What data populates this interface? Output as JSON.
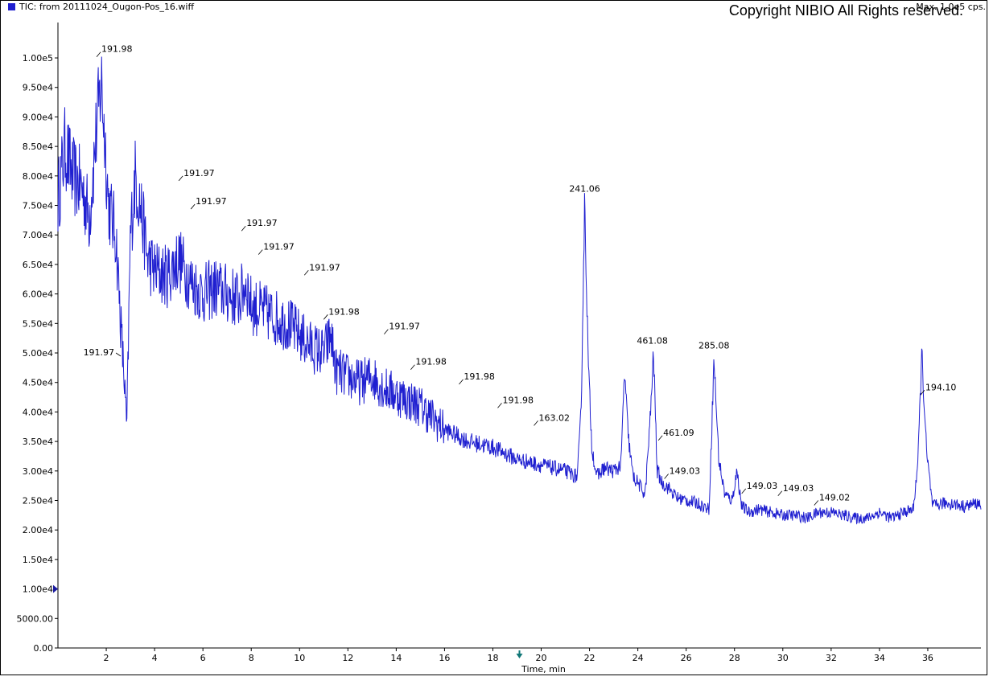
{
  "legend": {
    "label": "TIC: from 20111024_Ougon-Pos_16.wiff",
    "color": "#1f1fd0"
  },
  "max_label": "Max. 1.0e5 cps.",
  "copyright": "Copyright NIBIO All Rights reserved.",
  "chart_data": {
    "type": "line",
    "xlabel": "Time, min",
    "ylabel": "",
    "xlim": [
      0,
      38.2
    ],
    "ylim": [
      0,
      106000
    ],
    "x_ticks": [
      2,
      4,
      6,
      8,
      10,
      12,
      14,
      16,
      18,
      20,
      22,
      24,
      26,
      28,
      30,
      32,
      34,
      36
    ],
    "x_tick_labels": [
      "2",
      "4",
      "6",
      "8",
      "10",
      "12",
      "14",
      "16",
      "18",
      "20",
      "22",
      "24",
      "26",
      "28",
      "30",
      "32",
      "34",
      "36"
    ],
    "y_ticks": [
      0,
      5000,
      10000,
      15000,
      20000,
      25000,
      30000,
      35000,
      40000,
      45000,
      50000,
      55000,
      60000,
      65000,
      70000,
      75000,
      80000,
      85000,
      90000,
      95000,
      100000
    ],
    "y_tick_labels": [
      "0.00",
      "5000.00",
      "1.00e4",
      "1.50e4",
      "2.00e4",
      "2.50e4",
      "3.00e4",
      "3.50e4",
      "4.00e4",
      "4.50e4",
      "5.00e4",
      "5.50e4",
      "6.00e4",
      "6.50e4",
      "7.00e4",
      "7.50e4",
      "8.00e4",
      "8.50e4",
      "9.00e4",
      "9.50e4",
      "1.00e5"
    ],
    "series": [
      {
        "color": "#1f1fd0",
        "x": [
          0.0,
          0.3,
          0.6,
          1.0,
          1.3,
          1.6,
          1.8,
          2.1,
          2.4,
          2.6,
          2.75,
          2.85,
          3.0,
          3.2,
          3.45,
          3.7,
          4.0,
          4.5,
          5.0,
          5.5,
          6.0,
          6.5,
          7.0,
          7.5,
          7.8,
          8.0,
          8.5,
          9.0,
          9.5,
          10.0,
          10.5,
          11.0,
          11.3,
          11.5,
          12.0,
          12.5,
          13.0,
          13.5,
          14.0,
          14.5,
          15.0,
          15.5,
          16.0,
          16.5,
          17.0,
          17.5,
          18.0,
          18.5,
          19.0,
          19.5,
          20.0,
          20.5,
          21.0,
          21.5,
          21.65,
          21.8,
          21.95,
          22.1,
          22.3,
          22.6,
          23.0,
          23.3,
          23.45,
          23.6,
          23.8,
          24.0,
          24.3,
          24.5,
          24.65,
          24.8,
          25.0,
          25.3,
          25.6,
          26.0,
          26.5,
          26.95,
          27.15,
          27.35,
          27.6,
          27.9,
          28.1,
          28.3,
          28.6,
          29.0,
          29.5,
          30.0,
          30.5,
          31.0,
          31.5,
          32.0,
          32.5,
          33.0,
          33.5,
          34.0,
          34.5,
          35.0,
          35.4,
          35.6,
          35.75,
          35.95,
          36.2,
          36.6,
          37.0,
          37.5,
          38.0,
          38.2
        ],
        "values": [
          76000,
          85000,
          80000,
          78000,
          73000,
          88000,
          96000,
          75000,
          70000,
          55000,
          45000,
          37000,
          70000,
          80000,
          74000,
          66000,
          64000,
          63000,
          66000,
          62000,
          60000,
          61000,
          60000,
          59000,
          62000,
          58000,
          57000,
          56000,
          55000,
          53000,
          51000,
          50000,
          53000,
          47000,
          46000,
          45000,
          46000,
          44000,
          43000,
          42000,
          41000,
          39000,
          37000,
          36000,
          35000,
          34500,
          34000,
          33000,
          32000,
          31500,
          31000,
          30500,
          30000,
          29000,
          40000,
          76000,
          48000,
          34000,
          29000,
          30500,
          30000,
          31000,
          47000,
          36000,
          29000,
          28000,
          26000,
          38000,
          50000,
          30000,
          28000,
          27000,
          25500,
          25000,
          24500,
          23500,
          49000,
          32000,
          26000,
          25000,
          30000,
          24000,
          23000,
          23500,
          23000,
          22500,
          22500,
          22000,
          23000,
          23000,
          22500,
          22000,
          22000,
          23000,
          22000,
          23000,
          23500,
          32000,
          50000,
          33000,
          24000,
          24500,
          24500,
          24000,
          24500,
          24500
        ],
        "noise": 0.08
      }
    ],
    "annotations": [
      {
        "x": 1.6,
        "y": 101000,
        "label": "191.98"
      },
      {
        "x": 2.6,
        "y": 50000,
        "label": "191.97",
        "side": "left"
      },
      {
        "x": 5.0,
        "y": 80000,
        "label": "191.97"
      },
      {
        "x": 5.5,
        "y": 75200,
        "label": "191.97"
      },
      {
        "x": 7.6,
        "y": 71500,
        "label": "191.97"
      },
      {
        "x": 8.3,
        "y": 67500,
        "label": "191.97"
      },
      {
        "x": 10.2,
        "y": 64000,
        "label": "191.97"
      },
      {
        "x": 11.0,
        "y": 56500,
        "label": "191.98"
      },
      {
        "x": 13.5,
        "y": 54000,
        "label": "191.97"
      },
      {
        "x": 14.6,
        "y": 48000,
        "label": "191.98"
      },
      {
        "x": 16.6,
        "y": 45500,
        "label": "191.98"
      },
      {
        "x": 18.2,
        "y": 41500,
        "label": "191.98"
      },
      {
        "x": 19.7,
        "y": 38500,
        "label": "163.02"
      },
      {
        "x": 21.8,
        "y": 76800,
        "label": "241.06",
        "side": "top"
      },
      {
        "x": 24.6,
        "y": 51000,
        "label": "461.08",
        "side": "top"
      },
      {
        "x": 24.85,
        "y": 36000,
        "label": "461.09"
      },
      {
        "x": 25.1,
        "y": 29500,
        "label": "149.03"
      },
      {
        "x": 27.15,
        "y": 50200,
        "label": "285.08",
        "side": "top"
      },
      {
        "x": 28.3,
        "y": 27000,
        "label": "149.03"
      },
      {
        "x": 29.8,
        "y": 26600,
        "label": "149.03"
      },
      {
        "x": 31.3,
        "y": 25000,
        "label": "149.02"
      },
      {
        "x": 35.7,
        "y": 43700,
        "label": "194.10"
      }
    ]
  }
}
